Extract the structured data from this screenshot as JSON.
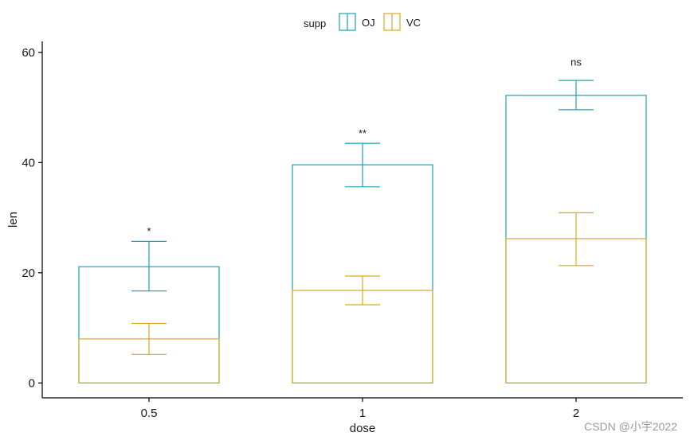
{
  "chart_data": {
    "type": "bar",
    "title": "",
    "xlabel": "dose",
    "ylabel": "len",
    "categories": [
      "0.5",
      "1",
      "2"
    ],
    "ylim": [
      -2.7,
      62
    ],
    "yticks": [
      0,
      20,
      40,
      60
    ],
    "grid": false,
    "legend_position": "top",
    "legend_title": "supp",
    "series": [
      {
        "name": "OJ",
        "color": "#1ba3b0",
        "values": [
          21.1,
          39.6,
          52.2
        ],
        "err_low": [
          16.7,
          35.6,
          49.6
        ],
        "err_high": [
          25.7,
          43.5,
          54.9
        ]
      },
      {
        "name": "VC",
        "color": "#dcab1c",
        "values": [
          8.0,
          16.8,
          26.2
        ],
        "err_low": [
          5.2,
          14.2,
          21.3
        ],
        "err_high": [
          10.8,
          19.4,
          30.9
        ]
      }
    ],
    "annotations": [
      {
        "category": "0.5",
        "text": "*",
        "y": 26.9
      },
      {
        "category": "1",
        "text": "**",
        "y": 44.7
      },
      {
        "category": "2",
        "text": "ns",
        "y": 57.6
      }
    ]
  },
  "watermark": "CSDN @小宇2022"
}
